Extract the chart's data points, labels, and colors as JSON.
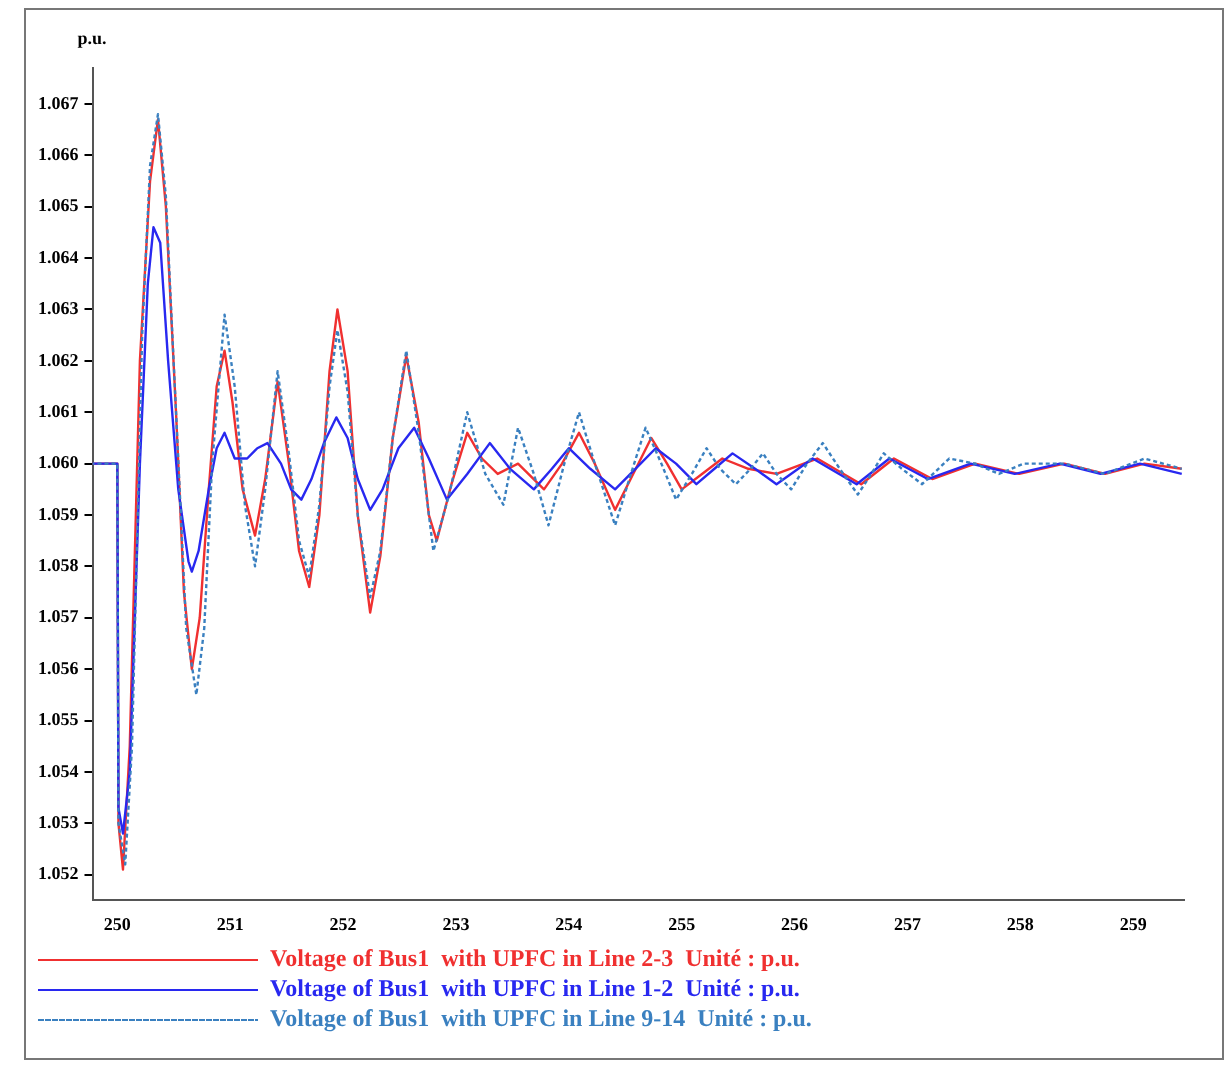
{
  "chart_data": {
    "type": "line",
    "ylabel": "p.u.",
    "legend": "bottom left",
    "grid": false,
    "marker": "none",
    "xlim": [
      249.78,
      259.45
    ],
    "xticks": [
      250,
      251,
      252,
      253,
      254,
      255,
      256,
      257,
      258,
      259
    ],
    "ylim": [
      1.0515,
      1.0677
    ],
    "yticks": [
      1.052,
      1.053,
      1.054,
      1.055,
      1.056,
      1.057,
      1.058,
      1.059,
      {
        "value": 1.06,
        "label": "1.060"
      },
      1.061,
      1.062,
      1.063,
      1.064,
      1.065,
      1.066,
      1.067
    ],
    "series": [
      {
        "name": "Voltage of Bus1  with UPFC in Line 2-3  Unité : p.u.",
        "color": "#f03030",
        "line_style": "solid",
        "x": [
          249.78,
          250.0,
          250.01,
          250.05,
          250.11,
          250.2,
          250.29,
          250.36,
          250.43,
          250.52,
          250.59,
          250.66,
          250.73,
          250.81,
          250.88,
          250.95,
          251.02,
          251.11,
          251.22,
          251.31,
          251.42,
          251.52,
          251.61,
          251.7,
          251.79,
          251.88,
          251.95,
          252.04,
          252.13,
          252.24,
          252.33,
          252.44,
          252.56,
          252.67,
          252.76,
          252.83,
          252.96,
          253.1,
          253.23,
          253.37,
          253.55,
          253.78,
          253.94,
          254.09,
          254.23,
          254.41,
          254.57,
          254.73,
          254.87,
          255.0,
          255.18,
          255.36,
          255.59,
          255.84,
          256.2,
          256.59,
          256.88,
          257.22,
          257.6,
          257.99,
          258.39,
          258.75,
          259.1,
          259.43
        ],
        "values": [
          1.06,
          1.06,
          1.053,
          1.0521,
          1.0545,
          1.062,
          1.0655,
          1.0667,
          1.065,
          1.061,
          1.0575,
          1.056,
          1.057,
          1.0595,
          1.0615,
          1.0622,
          1.0612,
          1.0595,
          1.0586,
          1.0597,
          1.0616,
          1.06,
          1.0583,
          1.0576,
          1.059,
          1.0618,
          1.063,
          1.0618,
          1.059,
          1.0571,
          1.0582,
          1.0605,
          1.0621,
          1.0608,
          1.059,
          1.0585,
          1.0596,
          1.0606,
          1.0601,
          1.0598,
          1.06,
          1.0595,
          1.06,
          1.0606,
          1.06,
          1.0591,
          1.0598,
          1.0605,
          1.06,
          1.0595,
          1.0598,
          1.0601,
          1.0599,
          1.0598,
          1.0601,
          1.0596,
          1.0601,
          1.0597,
          1.06,
          1.0598,
          1.06,
          1.0598,
          1.06,
          1.0599
        ]
      },
      {
        "name": "Voltage of Bus1  with UPFC in Line 1-2  Unité : p.u.",
        "color": "#2828f0",
        "line_style": "solid",
        "x": [
          249.78,
          250.0,
          250.01,
          250.05,
          250.11,
          250.2,
          250.27,
          250.32,
          250.38,
          250.45,
          250.54,
          250.63,
          250.66,
          250.72,
          250.81,
          250.88,
          250.95,
          251.04,
          251.15,
          251.24,
          251.33,
          251.45,
          251.54,
          251.63,
          251.72,
          251.83,
          251.94,
          252.04,
          252.13,
          252.24,
          252.35,
          252.49,
          252.63,
          252.76,
          252.92,
          253.1,
          253.3,
          253.48,
          253.69,
          253.85,
          254.0,
          254.19,
          254.41,
          254.59,
          254.77,
          254.95,
          255.13,
          255.29,
          255.45,
          255.65,
          255.84,
          256.16,
          256.55,
          256.84,
          257.18,
          257.56,
          257.95,
          258.35,
          258.71,
          259.06,
          259.43
        ],
        "values": [
          1.06,
          1.06,
          1.0533,
          1.0528,
          1.054,
          1.06,
          1.0635,
          1.0646,
          1.0643,
          1.062,
          1.0595,
          1.0581,
          1.0579,
          1.0583,
          1.0595,
          1.0603,
          1.0606,
          1.0601,
          1.0601,
          1.0603,
          1.0604,
          1.06,
          1.0595,
          1.0593,
          1.0597,
          1.0604,
          1.0609,
          1.0605,
          1.0597,
          1.0591,
          1.0595,
          1.0603,
          1.0607,
          1.0601,
          1.0593,
          1.0598,
          1.0604,
          1.0599,
          1.0595,
          1.0599,
          1.0603,
          1.0599,
          1.0595,
          1.0599,
          1.0603,
          1.06,
          1.0596,
          1.0599,
          1.0602,
          1.0599,
          1.0596,
          1.0601,
          1.0596,
          1.0601,
          1.0597,
          1.06,
          1.0598,
          1.06,
          1.0598,
          1.06,
          1.0598
        ]
      },
      {
        "name": "Voltage of Bus1  with UPFC in Line 9-14  Unité : p.u.",
        "color": "#3a80c0",
        "line_style": "dotted",
        "x": [
          249.78,
          250.0,
          250.01,
          250.07,
          250.13,
          250.22,
          250.29,
          250.36,
          250.43,
          250.52,
          250.61,
          250.7,
          250.77,
          250.84,
          250.95,
          251.04,
          251.13,
          251.22,
          251.31,
          251.42,
          251.52,
          251.61,
          251.7,
          251.79,
          251.88,
          251.95,
          252.04,
          252.13,
          252.24,
          252.33,
          252.44,
          252.56,
          252.67,
          252.8,
          252.94,
          253.1,
          253.26,
          253.42,
          253.55,
          253.69,
          253.82,
          253.96,
          254.09,
          254.23,
          254.41,
          254.55,
          254.68,
          254.82,
          254.95,
          255.09,
          255.22,
          255.34,
          255.48,
          255.61,
          255.72,
          255.84,
          255.97,
          256.11,
          256.25,
          256.4,
          256.56,
          256.68,
          256.79,
          256.95,
          257.13,
          257.37,
          257.6,
          257.81,
          258.03,
          258.39,
          258.75,
          259.1,
          259.43
        ],
        "values": [
          1.06,
          1.06,
          1.053,
          1.0522,
          1.0545,
          1.0625,
          1.0658,
          1.0668,
          1.0652,
          1.061,
          1.0568,
          1.0555,
          1.0568,
          1.06,
          1.0629,
          1.0615,
          1.0592,
          1.058,
          1.0595,
          1.0618,
          1.0602,
          1.0585,
          1.0578,
          1.0592,
          1.0615,
          1.0626,
          1.0614,
          1.059,
          1.0574,
          1.0583,
          1.0605,
          1.0622,
          1.0606,
          1.0583,
          1.0594,
          1.061,
          1.0598,
          1.0592,
          1.0607,
          1.0598,
          1.0588,
          1.06,
          1.061,
          1.06,
          1.0588,
          1.0598,
          1.0607,
          1.06,
          1.0593,
          1.0598,
          1.0603,
          1.0599,
          1.0596,
          1.0599,
          1.0602,
          1.0598,
          1.0595,
          1.06,
          1.0604,
          1.0599,
          1.0594,
          1.0598,
          1.0602,
          1.0599,
          1.0596,
          1.0601,
          1.06,
          1.0598,
          1.06,
          1.06,
          1.0598,
          1.0601,
          1.0599
        ]
      }
    ]
  }
}
